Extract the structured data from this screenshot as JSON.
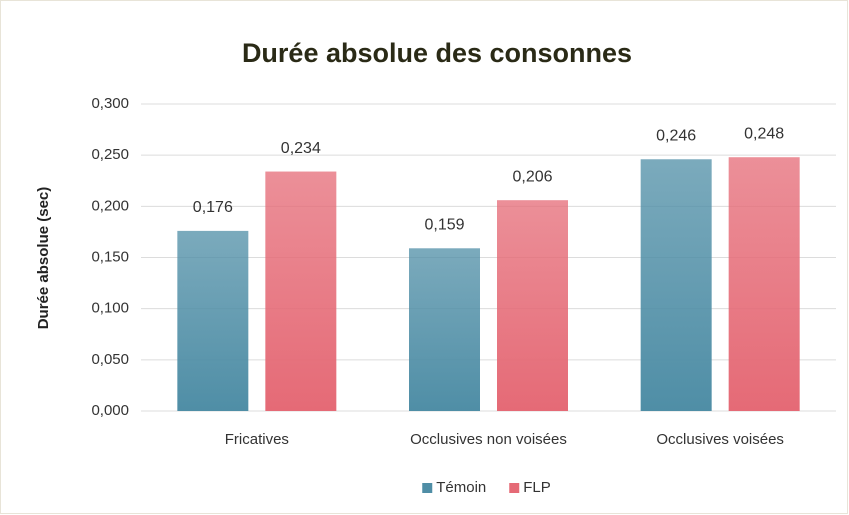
{
  "chart_data": {
    "type": "bar",
    "title": "Durée absolue des consonnes",
    "y_label": "Durée absolue (sec)",
    "categories": [
      "Fricatives",
      "Occlusives non voisées",
      "Occlusives voisées"
    ],
    "series": [
      {
        "name": "Témoin",
        "color": "#4f8ea6",
        "values": [
          0.176,
          0.159,
          0.246
        ],
        "value_labels": [
          "0,176",
          "0,159",
          "0,246"
        ]
      },
      {
        "name": "FLP",
        "color": "#e56a76",
        "values": [
          0.234,
          0.206,
          0.248
        ],
        "value_labels": [
          "0,234",
          "0,206",
          "0,248"
        ]
      }
    ],
    "ylim": [
      0,
      0.3
    ],
    "yticks": [
      {
        "value": 0,
        "label": "0,000"
      },
      {
        "value": 0.05,
        "label": "0,050"
      },
      {
        "value": 0.1,
        "label": "0,100"
      },
      {
        "value": 0.15,
        "label": "0,150"
      },
      {
        "value": 0.2,
        "label": "0,200"
      },
      {
        "value": 0.25,
        "label": "0,250"
      },
      {
        "value": 0.3,
        "label": "0,300"
      }
    ],
    "grid": true,
    "legend": "bottom"
  }
}
